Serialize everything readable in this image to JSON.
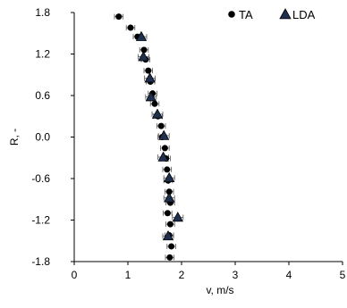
{
  "chart_data": {
    "type": "scatter",
    "title": "",
    "xlabel": "v, m/s",
    "ylabel": "R, -",
    "xlim": [
      0,
      5
    ],
    "ylim": [
      -1.8,
      1.8
    ],
    "x_ticks": [
      0,
      1,
      2,
      3,
      4,
      5
    ],
    "x_tick_labels": [
      "0",
      "1",
      "2",
      "3",
      "4",
      "5"
    ],
    "y_ticks": [
      1.8,
      1.2,
      0.6,
      0.0,
      -0.6,
      -1.2,
      -1.8
    ],
    "y_tick_labels": [
      "1.8",
      "1.2",
      "0.6",
      "0.0",
      "-0.6",
      "-1.2",
      "-1.8"
    ],
    "grid": false,
    "legend_position": "top-right",
    "series": [
      {
        "name": "TA",
        "marker": "circle",
        "color": "#000000",
        "error_bar_halfwidth": 0.08,
        "points": [
          {
            "x": 0.83,
            "y": 1.74
          },
          {
            "x": 1.05,
            "y": 1.58
          },
          {
            "x": 1.18,
            "y": 1.45
          },
          {
            "x": 1.3,
            "y": 1.26
          },
          {
            "x": 1.33,
            "y": 1.12
          },
          {
            "x": 1.38,
            "y": 0.96
          },
          {
            "x": 1.42,
            "y": 0.8
          },
          {
            "x": 1.46,
            "y": 0.63
          },
          {
            "x": 1.5,
            "y": 0.48
          },
          {
            "x": 1.56,
            "y": 0.3
          },
          {
            "x": 1.62,
            "y": 0.16
          },
          {
            "x": 1.64,
            "y": 0.0
          },
          {
            "x": 1.69,
            "y": -0.16
          },
          {
            "x": 1.71,
            "y": -0.31
          },
          {
            "x": 1.73,
            "y": -0.47
          },
          {
            "x": 1.75,
            "y": -0.63
          },
          {
            "x": 1.77,
            "y": -0.79
          },
          {
            "x": 1.79,
            "y": -0.95
          },
          {
            "x": 1.74,
            "y": -1.1
          },
          {
            "x": 1.79,
            "y": -1.26
          },
          {
            "x": 1.77,
            "y": -1.42
          },
          {
            "x": 1.81,
            "y": -1.58
          },
          {
            "x": 1.78,
            "y": -1.74
          }
        ]
      },
      {
        "name": "LDA",
        "marker": "triangle",
        "color": "#1f2f4f",
        "error_bar_halfwidth": 0.1,
        "points": [
          {
            "x": 1.25,
            "y": 1.45
          },
          {
            "x": 1.29,
            "y": 1.16
          },
          {
            "x": 1.41,
            "y": 0.85
          },
          {
            "x": 1.43,
            "y": 0.58
          },
          {
            "x": 1.55,
            "y": 0.33
          },
          {
            "x": 1.67,
            "y": 0.02
          },
          {
            "x": 1.66,
            "y": -0.29
          },
          {
            "x": 1.77,
            "y": -0.59
          },
          {
            "x": 1.77,
            "y": -0.88
          },
          {
            "x": 1.93,
            "y": -1.16
          },
          {
            "x": 1.75,
            "y": -1.43
          }
        ]
      }
    ]
  }
}
